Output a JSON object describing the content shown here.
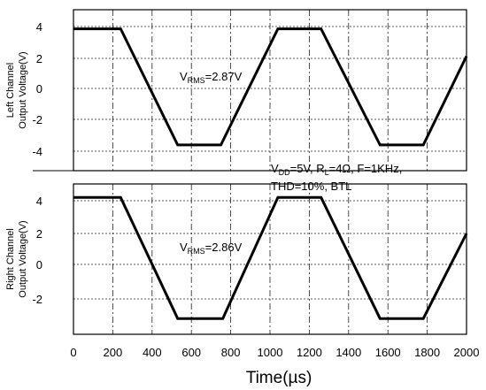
{
  "chart_data": {
    "type": "line",
    "xlabel": "Time(µs)",
    "xlim": [
      0,
      2000
    ],
    "x_ticks": [
      "0",
      "200",
      "400",
      "600",
      "800",
      "1000",
      "1200",
      "1400",
      "1600",
      "1800",
      "2000"
    ],
    "grid": true,
    "panels": [
      {
        "ylabel_line1": "Left Channel",
        "ylabel_line2": "Output Voltage(V)",
        "ylim": [
          -5,
          5
        ],
        "y_ticks": [
          "4",
          "2",
          "0",
          "-2",
          "-4"
        ],
        "annotation": {
          "prefix": "V",
          "sub": "RMS",
          "suffix": "=2.87V"
        },
        "series": [
          {
            "x": [
              0,
              240,
              530,
              750,
              1040,
              1260,
              1560,
              1780,
              2000
            ],
            "y": [
              3.85,
              3.85,
              -3.6,
              -3.6,
              3.85,
              3.85,
              -3.6,
              -3.6,
              2.1
            ]
          }
        ]
      },
      {
        "ylabel_line1": "Right Channel",
        "ylabel_line2": "Output Voltage(V)",
        "ylim": [
          -4,
          5
        ],
        "y_ticks": [
          "4",
          "2",
          "0",
          "-2"
        ],
        "annotation": {
          "prefix": "V",
          "sub": "RMS",
          "suffix": "=2.86V"
        },
        "series": [
          {
            "x": [
              0,
              240,
              530,
              760,
              1040,
              1260,
              1560,
              1780,
              2000
            ],
            "y": [
              4.2,
              4.2,
              -3.2,
              -3.2,
              4.2,
              4.2,
              -3.2,
              -3.2,
              2.0
            ]
          }
        ]
      }
    ],
    "conditions": [
      [
        {
          "t": "V"
        },
        {
          "t": "DD",
          "sub": true
        },
        {
          "t": "=5V, R"
        },
        {
          "t": "L",
          "sub": true
        },
        {
          "t": "=4Ω, F=1KHz,"
        }
      ],
      [
        {
          "t": "THD=10%, BTL"
        }
      ]
    ]
  }
}
